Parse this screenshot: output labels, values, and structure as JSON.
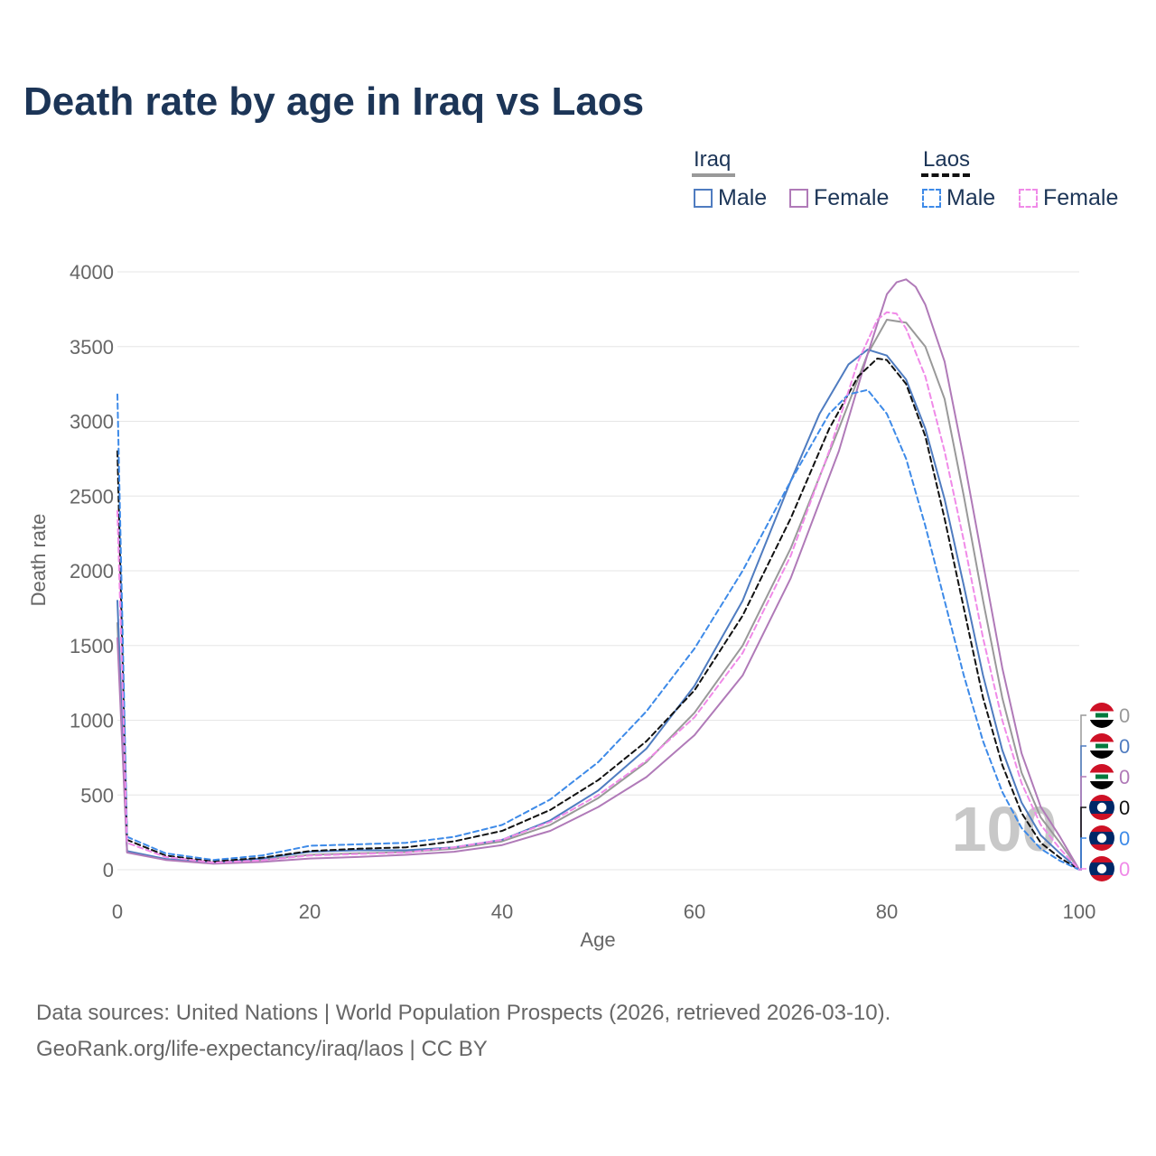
{
  "title": "Death rate by age in Iraq vs Laos",
  "legend": {
    "groups": [
      {
        "label": "Iraq",
        "underline_color": "#999999",
        "underline_style": "solid",
        "items": [
          {
            "label": "Male",
            "color": "#4f7cc0",
            "style": "solid"
          },
          {
            "label": "Female",
            "color": "#b07ab8",
            "style": "solid"
          }
        ]
      },
      {
        "label": "Laos",
        "underline_color": "#111111",
        "underline_style": "dashed",
        "items": [
          {
            "label": "Male",
            "color": "#3d8ae8",
            "style": "dashed"
          },
          {
            "label": "Female",
            "color": "#f08ae8",
            "style": "dashed"
          }
        ]
      }
    ]
  },
  "chart_data": {
    "type": "line",
    "title": "Death rate by age in Iraq vs Laos",
    "xlabel": "Age",
    "ylabel": "Death rate",
    "xlim": [
      0,
      100
    ],
    "ylim": [
      0,
      4000
    ],
    "xticks": [
      0,
      20,
      40,
      60,
      80,
      100
    ],
    "yticks": [
      0,
      500,
      1000,
      1500,
      2000,
      2500,
      3000,
      3500,
      4000
    ],
    "grid": true,
    "watermark": "100",
    "series": [
      {
        "name": "Iraq Total",
        "color": "#999999",
        "style": "solid",
        "points": [
          [
            0,
            1650
          ],
          [
            1,
            120
          ],
          [
            5,
            70
          ],
          [
            10,
            45
          ],
          [
            15,
            65
          ],
          [
            20,
            100
          ],
          [
            25,
            110
          ],
          [
            30,
            118
          ],
          [
            35,
            140
          ],
          [
            40,
            190
          ],
          [
            45,
            300
          ],
          [
            50,
            480
          ],
          [
            55,
            720
          ],
          [
            60,
            1050
          ],
          [
            65,
            1500
          ],
          [
            70,
            2150
          ],
          [
            75,
            2950
          ],
          [
            78,
            3450
          ],
          [
            80,
            3680
          ],
          [
            82,
            3660
          ],
          [
            84,
            3500
          ],
          [
            86,
            3150
          ],
          [
            88,
            2500
          ],
          [
            90,
            1800
          ],
          [
            92,
            1150
          ],
          [
            94,
            650
          ],
          [
            96,
            350
          ],
          [
            98,
            180
          ],
          [
            100,
            0
          ]
        ]
      },
      {
        "name": "Iraq Male",
        "color": "#4f7cc0",
        "style": "solid",
        "points": [
          [
            0,
            1800
          ],
          [
            1,
            125
          ],
          [
            5,
            72
          ],
          [
            10,
            48
          ],
          [
            15,
            75
          ],
          [
            20,
            120
          ],
          [
            25,
            130
          ],
          [
            30,
            130
          ],
          [
            35,
            150
          ],
          [
            40,
            200
          ],
          [
            45,
            330
          ],
          [
            50,
            530
          ],
          [
            55,
            810
          ],
          [
            60,
            1230
          ],
          [
            65,
            1800
          ],
          [
            70,
            2600
          ],
          [
            73,
            3050
          ],
          [
            76,
            3380
          ],
          [
            78,
            3480
          ],
          [
            80,
            3440
          ],
          [
            82,
            3280
          ],
          [
            84,
            2950
          ],
          [
            86,
            2480
          ],
          [
            88,
            1900
          ],
          [
            90,
            1300
          ],
          [
            92,
            800
          ],
          [
            94,
            450
          ],
          [
            96,
            230
          ],
          [
            98,
            110
          ],
          [
            100,
            0
          ]
        ]
      },
      {
        "name": "Iraq Female",
        "color": "#b07ab8",
        "style": "solid",
        "points": [
          [
            0,
            1550
          ],
          [
            1,
            115
          ],
          [
            5,
            65
          ],
          [
            10,
            40
          ],
          [
            15,
            52
          ],
          [
            20,
            75
          ],
          [
            25,
            85
          ],
          [
            30,
            100
          ],
          [
            35,
            120
          ],
          [
            40,
            165
          ],
          [
            45,
            260
          ],
          [
            50,
            420
          ],
          [
            55,
            620
          ],
          [
            60,
            900
          ],
          [
            65,
            1300
          ],
          [
            70,
            1950
          ],
          [
            75,
            2800
          ],
          [
            78,
            3450
          ],
          [
            80,
            3850
          ],
          [
            81,
            3930
          ],
          [
            82,
            3950
          ],
          [
            83,
            3900
          ],
          [
            84,
            3780
          ],
          [
            86,
            3400
          ],
          [
            88,
            2750
          ],
          [
            90,
            2050
          ],
          [
            92,
            1350
          ],
          [
            94,
            780
          ],
          [
            96,
            420
          ],
          [
            98,
            220
          ],
          [
            100,
            0
          ]
        ]
      },
      {
        "name": "Laos Total",
        "color": "#111111",
        "style": "dashed",
        "points": [
          [
            0,
            2800
          ],
          [
            1,
            200
          ],
          [
            5,
            95
          ],
          [
            10,
            55
          ],
          [
            15,
            80
          ],
          [
            20,
            125
          ],
          [
            25,
            140
          ],
          [
            30,
            150
          ],
          [
            35,
            190
          ],
          [
            40,
            260
          ],
          [
            45,
            400
          ],
          [
            50,
            600
          ],
          [
            55,
            860
          ],
          [
            60,
            1200
          ],
          [
            65,
            1700
          ],
          [
            70,
            2350
          ],
          [
            74,
            2950
          ],
          [
            77,
            3300
          ],
          [
            79,
            3420
          ],
          [
            80,
            3410
          ],
          [
            82,
            3250
          ],
          [
            84,
            2900
          ],
          [
            86,
            2350
          ],
          [
            88,
            1750
          ],
          [
            90,
            1150
          ],
          [
            92,
            700
          ],
          [
            94,
            380
          ],
          [
            96,
            180
          ],
          [
            98,
            80
          ],
          [
            100,
            0
          ]
        ]
      },
      {
        "name": "Laos Male",
        "color": "#3d8ae8",
        "style": "dashed",
        "points": [
          [
            0,
            3180
          ],
          [
            1,
            220
          ],
          [
            5,
            110
          ],
          [
            10,
            65
          ],
          [
            15,
            95
          ],
          [
            20,
            160
          ],
          [
            25,
            170
          ],
          [
            30,
            180
          ],
          [
            35,
            220
          ],
          [
            40,
            300
          ],
          [
            45,
            470
          ],
          [
            50,
            720
          ],
          [
            55,
            1060
          ],
          [
            60,
            1480
          ],
          [
            65,
            2000
          ],
          [
            70,
            2600
          ],
          [
            74,
            3050
          ],
          [
            76,
            3180
          ],
          [
            78,
            3210
          ],
          [
            80,
            3050
          ],
          [
            82,
            2750
          ],
          [
            84,
            2300
          ],
          [
            86,
            1800
          ],
          [
            88,
            1300
          ],
          [
            90,
            860
          ],
          [
            92,
            520
          ],
          [
            94,
            280
          ],
          [
            96,
            140
          ],
          [
            98,
            60
          ],
          [
            100,
            0
          ]
        ]
      },
      {
        "name": "Laos Female",
        "color": "#f08ae8",
        "style": "dashed",
        "points": [
          [
            0,
            2400
          ],
          [
            1,
            180
          ],
          [
            5,
            85
          ],
          [
            10,
            48
          ],
          [
            15,
            62
          ],
          [
            20,
            95
          ],
          [
            25,
            105
          ],
          [
            30,
            115
          ],
          [
            35,
            150
          ],
          [
            40,
            200
          ],
          [
            45,
            320
          ],
          [
            50,
            500
          ],
          [
            55,
            730
          ],
          [
            60,
            1020
          ],
          [
            65,
            1450
          ],
          [
            70,
            2100
          ],
          [
            74,
            2800
          ],
          [
            77,
            3400
          ],
          [
            79,
            3680
          ],
          [
            80,
            3730
          ],
          [
            81,
            3720
          ],
          [
            82,
            3620
          ],
          [
            84,
            3300
          ],
          [
            86,
            2800
          ],
          [
            88,
            2200
          ],
          [
            90,
            1550
          ],
          [
            92,
            1000
          ],
          [
            94,
            580
          ],
          [
            96,
            300
          ],
          [
            98,
            140
          ],
          [
            100,
            0
          ]
        ]
      }
    ],
    "end_labels": [
      {
        "value": "0",
        "color": "#999999",
        "flag": "iraq"
      },
      {
        "value": "0",
        "color": "#4f7cc0",
        "flag": "iraq"
      },
      {
        "value": "0",
        "color": "#b07ab8",
        "flag": "iraq"
      },
      {
        "value": "0",
        "color": "#111111",
        "flag": "laos"
      },
      {
        "value": "0",
        "color": "#3d8ae8",
        "flag": "laos"
      },
      {
        "value": "0",
        "color": "#f08ae8",
        "flag": "laos"
      }
    ]
  },
  "source": {
    "line1": "Data sources: United Nations | World Population Prospects (2026, retrieved 2026-03-10).",
    "line2": "GeoRank.org/life-expectancy/iraq/laos | CC BY"
  }
}
